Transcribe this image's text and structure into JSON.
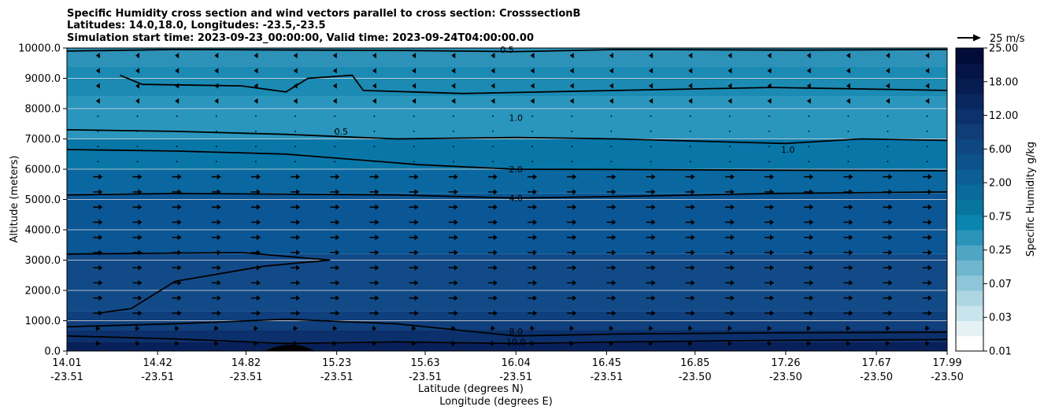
{
  "chart_data": {
    "type": "filled-contour-with-wind-vectors",
    "title": {
      "line1": "Specific Humidity cross section and wind vectors parallel to cross section: CrosssectionB",
      "line2": "Latitudes: 14.0,18.0, Longitudes: -23.5,-23.5",
      "line3": "Simulation start time: 2023-09-23_00:00:00, Valid time: 2023-09-24T04:00:00.00"
    },
    "ylabel": "Altitude (meters)",
    "xlabel_lat": "Latitude (degrees N)",
    "xlabel_lon": "Longitude (degrees E)",
    "ylim": [
      0,
      10000
    ],
    "y_ticks": [
      {
        "value": 0,
        "label": "0.0"
      },
      {
        "value": 1000,
        "label": "1000.0"
      },
      {
        "value": 2000,
        "label": "2000.0"
      },
      {
        "value": 3000,
        "label": "3000.0"
      },
      {
        "value": 4000,
        "label": "4000.0"
      },
      {
        "value": 5000,
        "label": "5000.0"
      },
      {
        "value": 6000,
        "label": "6000.0"
      },
      {
        "value": 7000,
        "label": "7000.0"
      },
      {
        "value": 8000,
        "label": "8000.0"
      },
      {
        "value": 9000,
        "label": "9000.0"
      },
      {
        "value": 10000,
        "label": "10000.0"
      }
    ],
    "xlim": [
      14.01,
      17.99
    ],
    "x_ticks": [
      {
        "lat": 14.01,
        "lat_label": "14.01",
        "lon_label": "-23.51"
      },
      {
        "lat": 14.42,
        "lat_label": "14.42",
        "lon_label": "-23.51"
      },
      {
        "lat": 14.82,
        "lat_label": "14.82",
        "lon_label": "-23.51"
      },
      {
        "lat": 15.23,
        "lat_label": "15.23",
        "lon_label": "-23.51"
      },
      {
        "lat": 15.63,
        "lat_label": "15.63",
        "lon_label": "-23.51"
      },
      {
        "lat": 16.04,
        "lat_label": "16.04",
        "lon_label": "-23.51"
      },
      {
        "lat": 16.45,
        "lat_label": "16.45",
        "lon_label": "-23.51"
      },
      {
        "lat": 16.85,
        "lat_label": "16.85",
        "lon_label": "-23.50"
      },
      {
        "lat": 17.26,
        "lat_label": "17.26",
        "lon_label": "-23.50"
      },
      {
        "lat": 17.67,
        "lat_label": "17.67",
        "lon_label": "-23.50"
      },
      {
        "lat": 17.99,
        "lat_label": "17.99",
        "lon_label": "-23.50"
      }
    ],
    "humidity_bands": [
      {
        "low": 0,
        "high": 300,
        "color": "#08205a"
      },
      {
        "low": 300,
        "high": 700,
        "color": "#0b306c"
      },
      {
        "low": 700,
        "high": 1300,
        "color": "#0f3f7c"
      },
      {
        "low": 1300,
        "high": 3200,
        "color": "#124a88"
      },
      {
        "low": 3200,
        "high": 5200,
        "color": "#0b5695"
      },
      {
        "low": 5200,
        "high": 6000,
        "color": "#0a67a0"
      },
      {
        "low": 6000,
        "high": 7000,
        "color": "#0877a8"
      },
      {
        "low": 7000,
        "high": 8400,
        "color": "#2a96bd"
      },
      {
        "low": 8400,
        "high": 9400,
        "color": "#1b8bb4"
      },
      {
        "low": 9400,
        "high": 10000,
        "color": "#2d91b8"
      }
    ],
    "contours": [
      {
        "level": "0.5",
        "points": [
          [
            14.01,
            9900
          ],
          [
            14.5,
            9950
          ],
          [
            15.5,
            9920
          ],
          [
            16.04,
            9880
          ],
          [
            16.5,
            9950
          ],
          [
            17.3,
            9930
          ],
          [
            17.99,
            9950
          ]
        ]
      },
      {
        "level": "0.5",
        "points": [
          [
            14.25,
            9100
          ],
          [
            14.35,
            8800
          ],
          [
            14.8,
            8750
          ],
          [
            15.0,
            8550
          ],
          [
            15.1,
            9000
          ],
          [
            15.3,
            9100
          ],
          [
            15.35,
            8600
          ],
          [
            15.8,
            8500
          ],
          [
            16.5,
            8600
          ],
          [
            17.2,
            8700
          ],
          [
            17.99,
            8600
          ]
        ]
      },
      {
        "level": "1.0",
        "points": [
          [
            14.01,
            7300
          ],
          [
            14.5,
            7250
          ],
          [
            15.0,
            7150
          ],
          [
            15.5,
            7000
          ],
          [
            16.04,
            7050
          ],
          [
            16.5,
            7000
          ],
          [
            17.0,
            6900
          ],
          [
            17.26,
            6850
          ],
          [
            17.6,
            7000
          ],
          [
            17.99,
            6950
          ]
        ]
      },
      {
        "level": "2.0",
        "points": [
          [
            14.01,
            6650
          ],
          [
            14.5,
            6600
          ],
          [
            15.0,
            6500
          ],
          [
            15.6,
            6150
          ],
          [
            16.04,
            6000
          ],
          [
            16.5,
            5990
          ],
          [
            17.2,
            5970
          ],
          [
            17.99,
            5950
          ]
        ]
      },
      {
        "level": "4.0",
        "points": [
          [
            14.01,
            5150
          ],
          [
            14.5,
            5200
          ],
          [
            15.5,
            5150
          ],
          [
            16.04,
            5050
          ],
          [
            16.5,
            5100
          ],
          [
            17.2,
            5200
          ],
          [
            17.99,
            5250
          ]
        ]
      },
      {
        "level": "6.0",
        "points": [
          [
            14.01,
            3200
          ],
          [
            14.8,
            3250
          ],
          [
            15.2,
            3000
          ],
          [
            14.9,
            2800
          ],
          [
            14.5,
            2300
          ],
          [
            14.3,
            1400
          ],
          [
            14.15,
            1250
          ]
        ]
      },
      {
        "level": "8.0",
        "points": [
          [
            14.01,
            800
          ],
          [
            14.5,
            900
          ],
          [
            15.0,
            1050
          ],
          [
            15.5,
            900
          ],
          [
            16.04,
            500
          ],
          [
            16.5,
            560
          ],
          [
            17.2,
            600
          ],
          [
            17.99,
            620
          ]
        ]
      },
      {
        "level": "10.0",
        "points": [
          [
            14.01,
            500
          ],
          [
            14.5,
            400
          ],
          [
            15.0,
            250
          ],
          [
            15.5,
            300
          ],
          [
            16.04,
            250
          ],
          [
            16.5,
            300
          ],
          [
            17.2,
            350
          ],
          [
            17.99,
            380
          ]
        ]
      }
    ],
    "contour_labels": [
      {
        "text": "0.5",
        "lat": 16.0,
        "alt": 9950
      },
      {
        "text": "0.5",
        "lat": 15.25,
        "alt": 7250
      },
      {
        "text": "1.0",
        "lat": 16.04,
        "alt": 7700
      },
      {
        "text": "1.0",
        "lat": 17.27,
        "alt": 6650
      },
      {
        "text": "2.0",
        "lat": 16.04,
        "alt": 6000
      },
      {
        "text": "4.0",
        "lat": 16.04,
        "alt": 5050
      },
      {
        "text": "8.0",
        "lat": 16.04,
        "alt": 650
      },
      {
        "text": "10.0",
        "lat": 16.04,
        "alt": 300
      }
    ],
    "wind_vector_key": "25 m/s",
    "colorbar": {
      "label": "Specific Humidity g/kg",
      "tick_labels": [
        "0.01",
        "0.03",
        "0.07",
        "0.25",
        "0.75",
        "2.00",
        "6.00",
        "12.00",
        "18.00",
        "25.00"
      ],
      "colors": [
        "#ffffff",
        "#e4f2f5",
        "#c9e4ec",
        "#aed5e2",
        "#8ec6d9",
        "#6fb6cf",
        "#4fa6c4",
        "#2a95b9",
        "#0a85b0",
        "#08759f",
        "#0a6a9c",
        "#0c5e96",
        "#0e528c",
        "#0f4782",
        "#103c78",
        "#0c316c",
        "#09265e",
        "#071c50",
        "#041444",
        "#020c38"
      ]
    }
  }
}
